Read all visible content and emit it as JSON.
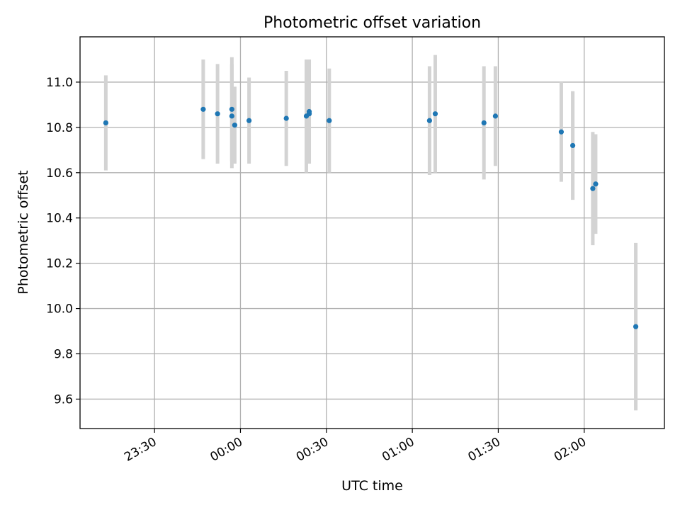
{
  "chart_data": {
    "type": "scatter",
    "title": "Photometric offset variation",
    "xlabel": "UTC time",
    "ylabel": "Photometric offset",
    "xlim": [
      "23:04",
      "02:28"
    ],
    "ylim": [
      9.47,
      11.2
    ],
    "grid": true,
    "x_ticks": [
      "23:30",
      "00:00",
      "00:30",
      "01:00",
      "01:30",
      "02:00"
    ],
    "y_ticks": [
      "9.6",
      "9.8",
      "10.0",
      "10.2",
      "10.4",
      "10.6",
      "10.8",
      "11.0"
    ],
    "series": [
      {
        "style": "points with error bars",
        "point_color": "#1f77b4",
        "errorbar_color": "#d3d3d3",
        "points": [
          {
            "x": "23:13",
            "y": 10.82,
            "err": 0.21
          },
          {
            "x": "23:47",
            "y": 10.88,
            "err": 0.22
          },
          {
            "x": "23:52",
            "y": 10.86,
            "err": 0.22
          },
          {
            "x": "23:57",
            "y": 10.88,
            "err": 0.23
          },
          {
            "x": "23:57",
            "y": 10.85,
            "err": 0.23
          },
          {
            "x": "23:58",
            "y": 10.81,
            "err": 0.17
          },
          {
            "x": "00:03",
            "y": 10.83,
            "err": 0.19
          },
          {
            "x": "00:16",
            "y": 10.84,
            "err": 0.21
          },
          {
            "x": "00:23",
            "y": 10.85,
            "err": 0.25
          },
          {
            "x": "00:24",
            "y": 10.87,
            "err": 0.23
          },
          {
            "x": "00:24",
            "y": 10.86,
            "err": 0.21
          },
          {
            "x": "00:31",
            "y": 10.83,
            "err": 0.23
          },
          {
            "x": "01:06",
            "y": 10.83,
            "err": 0.24
          },
          {
            "x": "01:08",
            "y": 10.86,
            "err": 0.26
          },
          {
            "x": "01:25",
            "y": 10.82,
            "err": 0.25
          },
          {
            "x": "01:29",
            "y": 10.85,
            "err": 0.22
          },
          {
            "x": "01:52",
            "y": 10.78,
            "err": 0.22
          },
          {
            "x": "01:56",
            "y": 10.72,
            "err": 0.24
          },
          {
            "x": "02:03",
            "y": 10.53,
            "err": 0.25
          },
          {
            "x": "02:04",
            "y": 10.55,
            "err": 0.22
          },
          {
            "x": "02:18",
            "y": 9.92,
            "err": 0.37
          }
        ]
      }
    ]
  }
}
